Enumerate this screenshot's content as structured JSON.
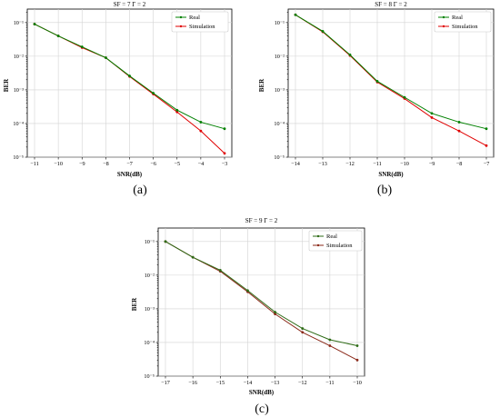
{
  "chart_data": [
    {
      "type": "line",
      "panel_label": "(a)",
      "title": "SF = 7   Γ = 2",
      "xlabel": "SNR(dB)",
      "ylabel": "BER",
      "x": [
        -11,
        -10,
        -9,
        -8,
        -7,
        -6,
        -5,
        -4,
        -3
      ],
      "xticks": [
        "−11",
        "−10",
        "−9",
        "−8",
        "−7",
        "−6",
        "−5",
        "−4",
        "−3"
      ],
      "yticks": [
        "10⁻⁵",
        "10⁻⁴",
        "10⁻³",
        "10⁻²",
        "10⁻¹"
      ],
      "ylim_exp": [
        -5,
        -0.6
      ],
      "yscale": "log",
      "grid": true,
      "legend_position": "top-right",
      "series": [
        {
          "name": "Real",
          "color": "#008000",
          "values": [
            0.09,
            0.04,
            0.019,
            0.009,
            0.0026,
            0.0008,
            0.00025,
            0.00011,
            7e-05
          ]
        },
        {
          "name": "Simulation",
          "color": "#e00000",
          "values": [
            0.09,
            0.04,
            0.018,
            0.009,
            0.0025,
            0.00075,
            0.00022,
            6e-05,
            1.3e-05
          ]
        }
      ]
    },
    {
      "type": "line",
      "panel_label": "(b)",
      "title": "SF = 8   Γ = 2",
      "xlabel": "SNR(dB)",
      "ylabel": "BER",
      "x": [
        -14,
        -13,
        -12,
        -11,
        -10,
        -9,
        -8,
        -7
      ],
      "xticks": [
        "−14",
        "−13",
        "−12",
        "−11",
        "−10",
        "−9",
        "−8",
        "−7"
      ],
      "yticks": [
        "10⁻⁵",
        "10⁻⁴",
        "10⁻³",
        "10⁻²",
        "10⁻¹"
      ],
      "ylim_exp": [
        -5,
        -0.6
      ],
      "yscale": "log",
      "grid": true,
      "legend_position": "top-right",
      "series": [
        {
          "name": "Real",
          "color": "#008000",
          "values": [
            0.17,
            0.055,
            0.011,
            0.0018,
            0.0006,
            0.0002,
            0.00011,
            7e-05
          ]
        },
        {
          "name": "Simulation",
          "color": "#e00000",
          "values": [
            0.17,
            0.053,
            0.0105,
            0.0017,
            0.00055,
            0.00015,
            6e-05,
            2.2e-05
          ]
        }
      ]
    },
    {
      "type": "line",
      "panel_label": "(c)",
      "title": "SF = 9   Γ = 2",
      "xlabel": "SNR(dB)",
      "ylabel": "BER",
      "x": [
        -17,
        -16,
        -15,
        -14,
        -13,
        -12,
        -11,
        -10
      ],
      "xticks": [
        "−17",
        "−16",
        "−15",
        "−14",
        "−13",
        "−12",
        "−11",
        "−10"
      ],
      "yticks": [
        "10⁻⁵",
        "10⁻⁴",
        "10⁻³",
        "10⁻²",
        "10⁻¹"
      ],
      "ylim_exp": [
        -5,
        -0.6
      ],
      "yscale": "log",
      "grid": true,
      "legend_position": "top-right",
      "series": [
        {
          "name": "Real",
          "color": "#2e6b16",
          "values": [
            0.1,
            0.034,
            0.014,
            0.0035,
            0.0008,
            0.00026,
            0.00012,
            8e-05
          ]
        },
        {
          "name": "Simulation",
          "color": "#8b2a1a",
          "values": [
            0.1,
            0.034,
            0.013,
            0.0032,
            0.0007,
            0.0002,
            8e-05,
            3e-05
          ]
        }
      ]
    }
  ]
}
